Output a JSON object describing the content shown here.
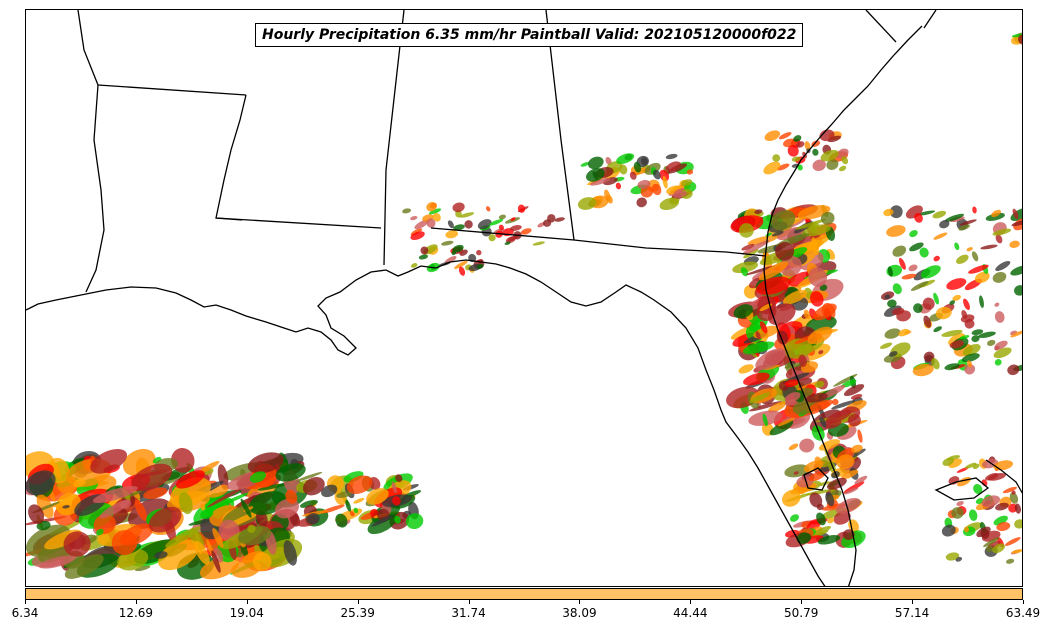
{
  "map": {
    "title": "Hourly Precipitation 6.35 mm/hr Paintball Valid: 202105120000f022",
    "member_colors": [
      "#8b1a1a",
      "#ff0000",
      "#ff8c00",
      "#ff4500",
      "#9aa800",
      "#6b7a1a",
      "#00cc00",
      "#006400",
      "#b22222",
      "#ffa500",
      "#3a3a3a",
      "#cd5c5c"
    ],
    "boundary_color": "#000000"
  },
  "colorbar": {
    "color": "#ffc266",
    "ticks": [
      "6.34",
      "12.69",
      "19.04",
      "25.39",
      "31.74",
      "38.09",
      "44.44",
      "50.79",
      "57.14",
      "63.49"
    ]
  }
}
